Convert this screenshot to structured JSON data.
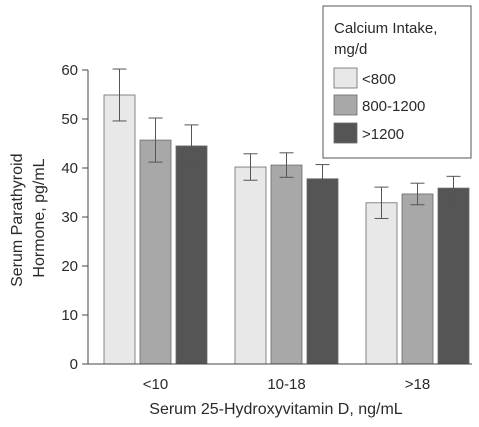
{
  "chart_data": {
    "type": "bar",
    "xlabel": "Serum 25-Hydroxyvitamin D, ng/mL",
    "ylabel": [
      "Serum Parathyroid",
      "Hormone, pg/mL"
    ],
    "categories": [
      "<10",
      "10-18",
      ">18"
    ],
    "ylim": [
      0,
      60
    ],
    "yticks": [
      0,
      10,
      20,
      30,
      40,
      50,
      60
    ],
    "grid": false,
    "legend": {
      "position": "top-right",
      "title": [
        "Calcium Intake,",
        "mg/d"
      ]
    },
    "series": [
      {
        "name": "<800",
        "color": "#e8e8e8",
        "values": [
          54.9,
          40.2,
          32.9
        ],
        "error": [
          5.3,
          2.7,
          3.2
        ]
      },
      {
        "name": "800-1200",
        "color": "#a8a8a8",
        "values": [
          45.7,
          40.6,
          34.7
        ],
        "error": [
          4.5,
          2.5,
          2.2
        ]
      },
      {
        "name": ">1200",
        "color": "#555555",
        "values": [
          44.5,
          37.8,
          35.9
        ],
        "error": [
          4.3,
          2.9,
          2.4
        ]
      }
    ]
  }
}
